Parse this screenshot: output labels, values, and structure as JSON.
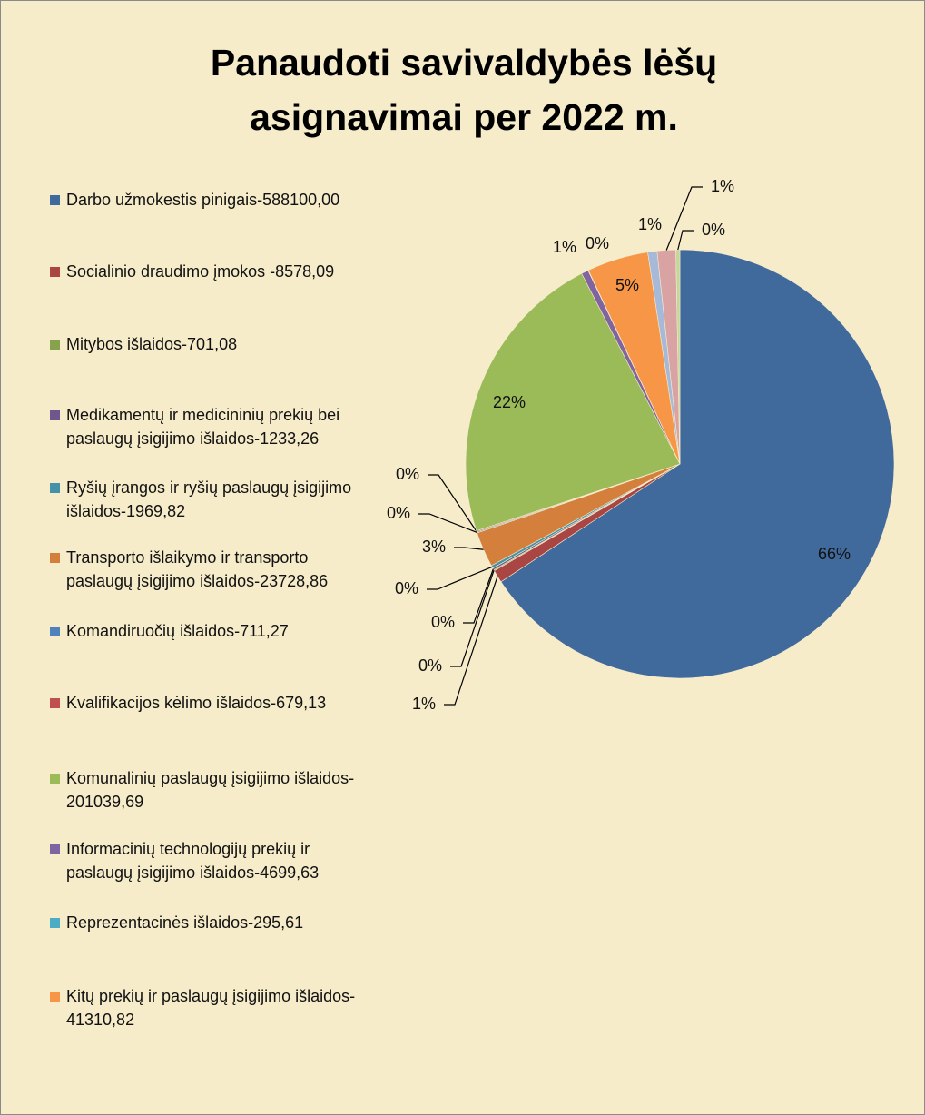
{
  "chart_data": {
    "type": "pie",
    "title": "Panaudoti savivaldybės lėšų asignavimai per 2022 m.",
    "categories": [
      "Darbo užmokestis pinigais-588100,00",
      "Socialinio draudimo įmokos -8578,09",
      "Mitybos išlaidos-701,08",
      "Medikamentų ir medicininių prekių bei paslaugų įsigijimo išlaidos-1233,26",
      "Ryšių įrangos ir ryšių paslaugų įsigijimo išlaidos-1969,82",
      "Transporto išlaikymo  ir transporto paslaugų įsigijimo išlaidos-23728,86",
      "Komandiruočių išlaidos-711,27",
      "Kvalifikacijos kėlimo išlaidos-679,13",
      "Komunalinių paslaugų įsigijimo išlaidos-201039,69",
      "Informacinių technologijų prekių ir paslaugų įsigijimo išlaidos-4699,63",
      "Reprezentacinės išlaidos-295,61",
      "Kitų prekių ir paslaugų įsigijimo išlaidos-41310,82",
      null,
      null,
      null
    ],
    "values": [
      65.7,
      0.96,
      0.08,
      0.14,
      0.22,
      2.65,
      0.08,
      0.08,
      22.46,
      0.53,
      0.03,
      4.62,
      0.7,
      1.4,
      0.3
    ],
    "value_labels": [
      "66%",
      "1%",
      "0%",
      "0%",
      "0%",
      "3%",
      "0%",
      "0%",
      "22%",
      "1%",
      "0%",
      "5%",
      "1%",
      "1%",
      "0%"
    ],
    "colors": [
      "#416a9c",
      "#a94542",
      "#86a24c",
      "#6f578d",
      "#4293a9",
      "#d47f3c",
      "#4f81bd",
      "#c0504d",
      "#9bbb59",
      "#8064a2",
      "#4bacc6",
      "#f79646",
      "#a6b9d8",
      "#d9a3a3",
      "#c3d69b"
    ],
    "legend": "left"
  }
}
